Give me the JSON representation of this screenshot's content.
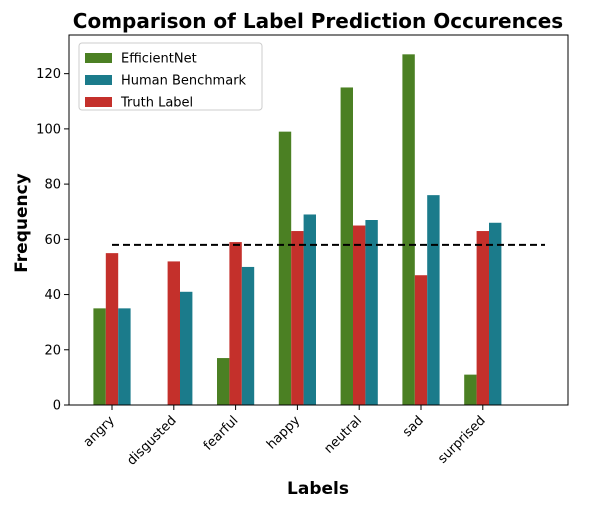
{
  "chart_data": {
    "type": "bar",
    "title": "Comparison of Label Prediction Occurences",
    "xlabel": "Labels",
    "ylabel": "Frequency",
    "categories": [
      "angry",
      "disgusted",
      "fearful",
      "happy",
      "neutral",
      "sad",
      "surprised"
    ],
    "series": [
      {
        "name": "EfficientNet",
        "color": "#4b8023",
        "values": [
          35,
          0,
          17,
          99,
          115,
          127,
          11
        ]
      },
      {
        "name": "Truth Label",
        "color": "#c4302b",
        "values": [
          55,
          52,
          59,
          63,
          65,
          47,
          63
        ]
      },
      {
        "name": "Human Benchmark",
        "color": "#1b7b8b",
        "values": [
          35,
          41,
          50,
          69,
          67,
          76,
          66
        ]
      }
    ],
    "legend_order": [
      "EfficientNet",
      "Human Benchmark",
      "Truth Label"
    ],
    "reference_line": {
      "value": 58,
      "style": "dashed",
      "color": "#000000"
    },
    "ylim": [
      0,
      134
    ],
    "yticks": [
      0,
      20,
      40,
      60,
      80,
      100,
      120
    ],
    "legend_position": "top-left",
    "grid": false
  }
}
